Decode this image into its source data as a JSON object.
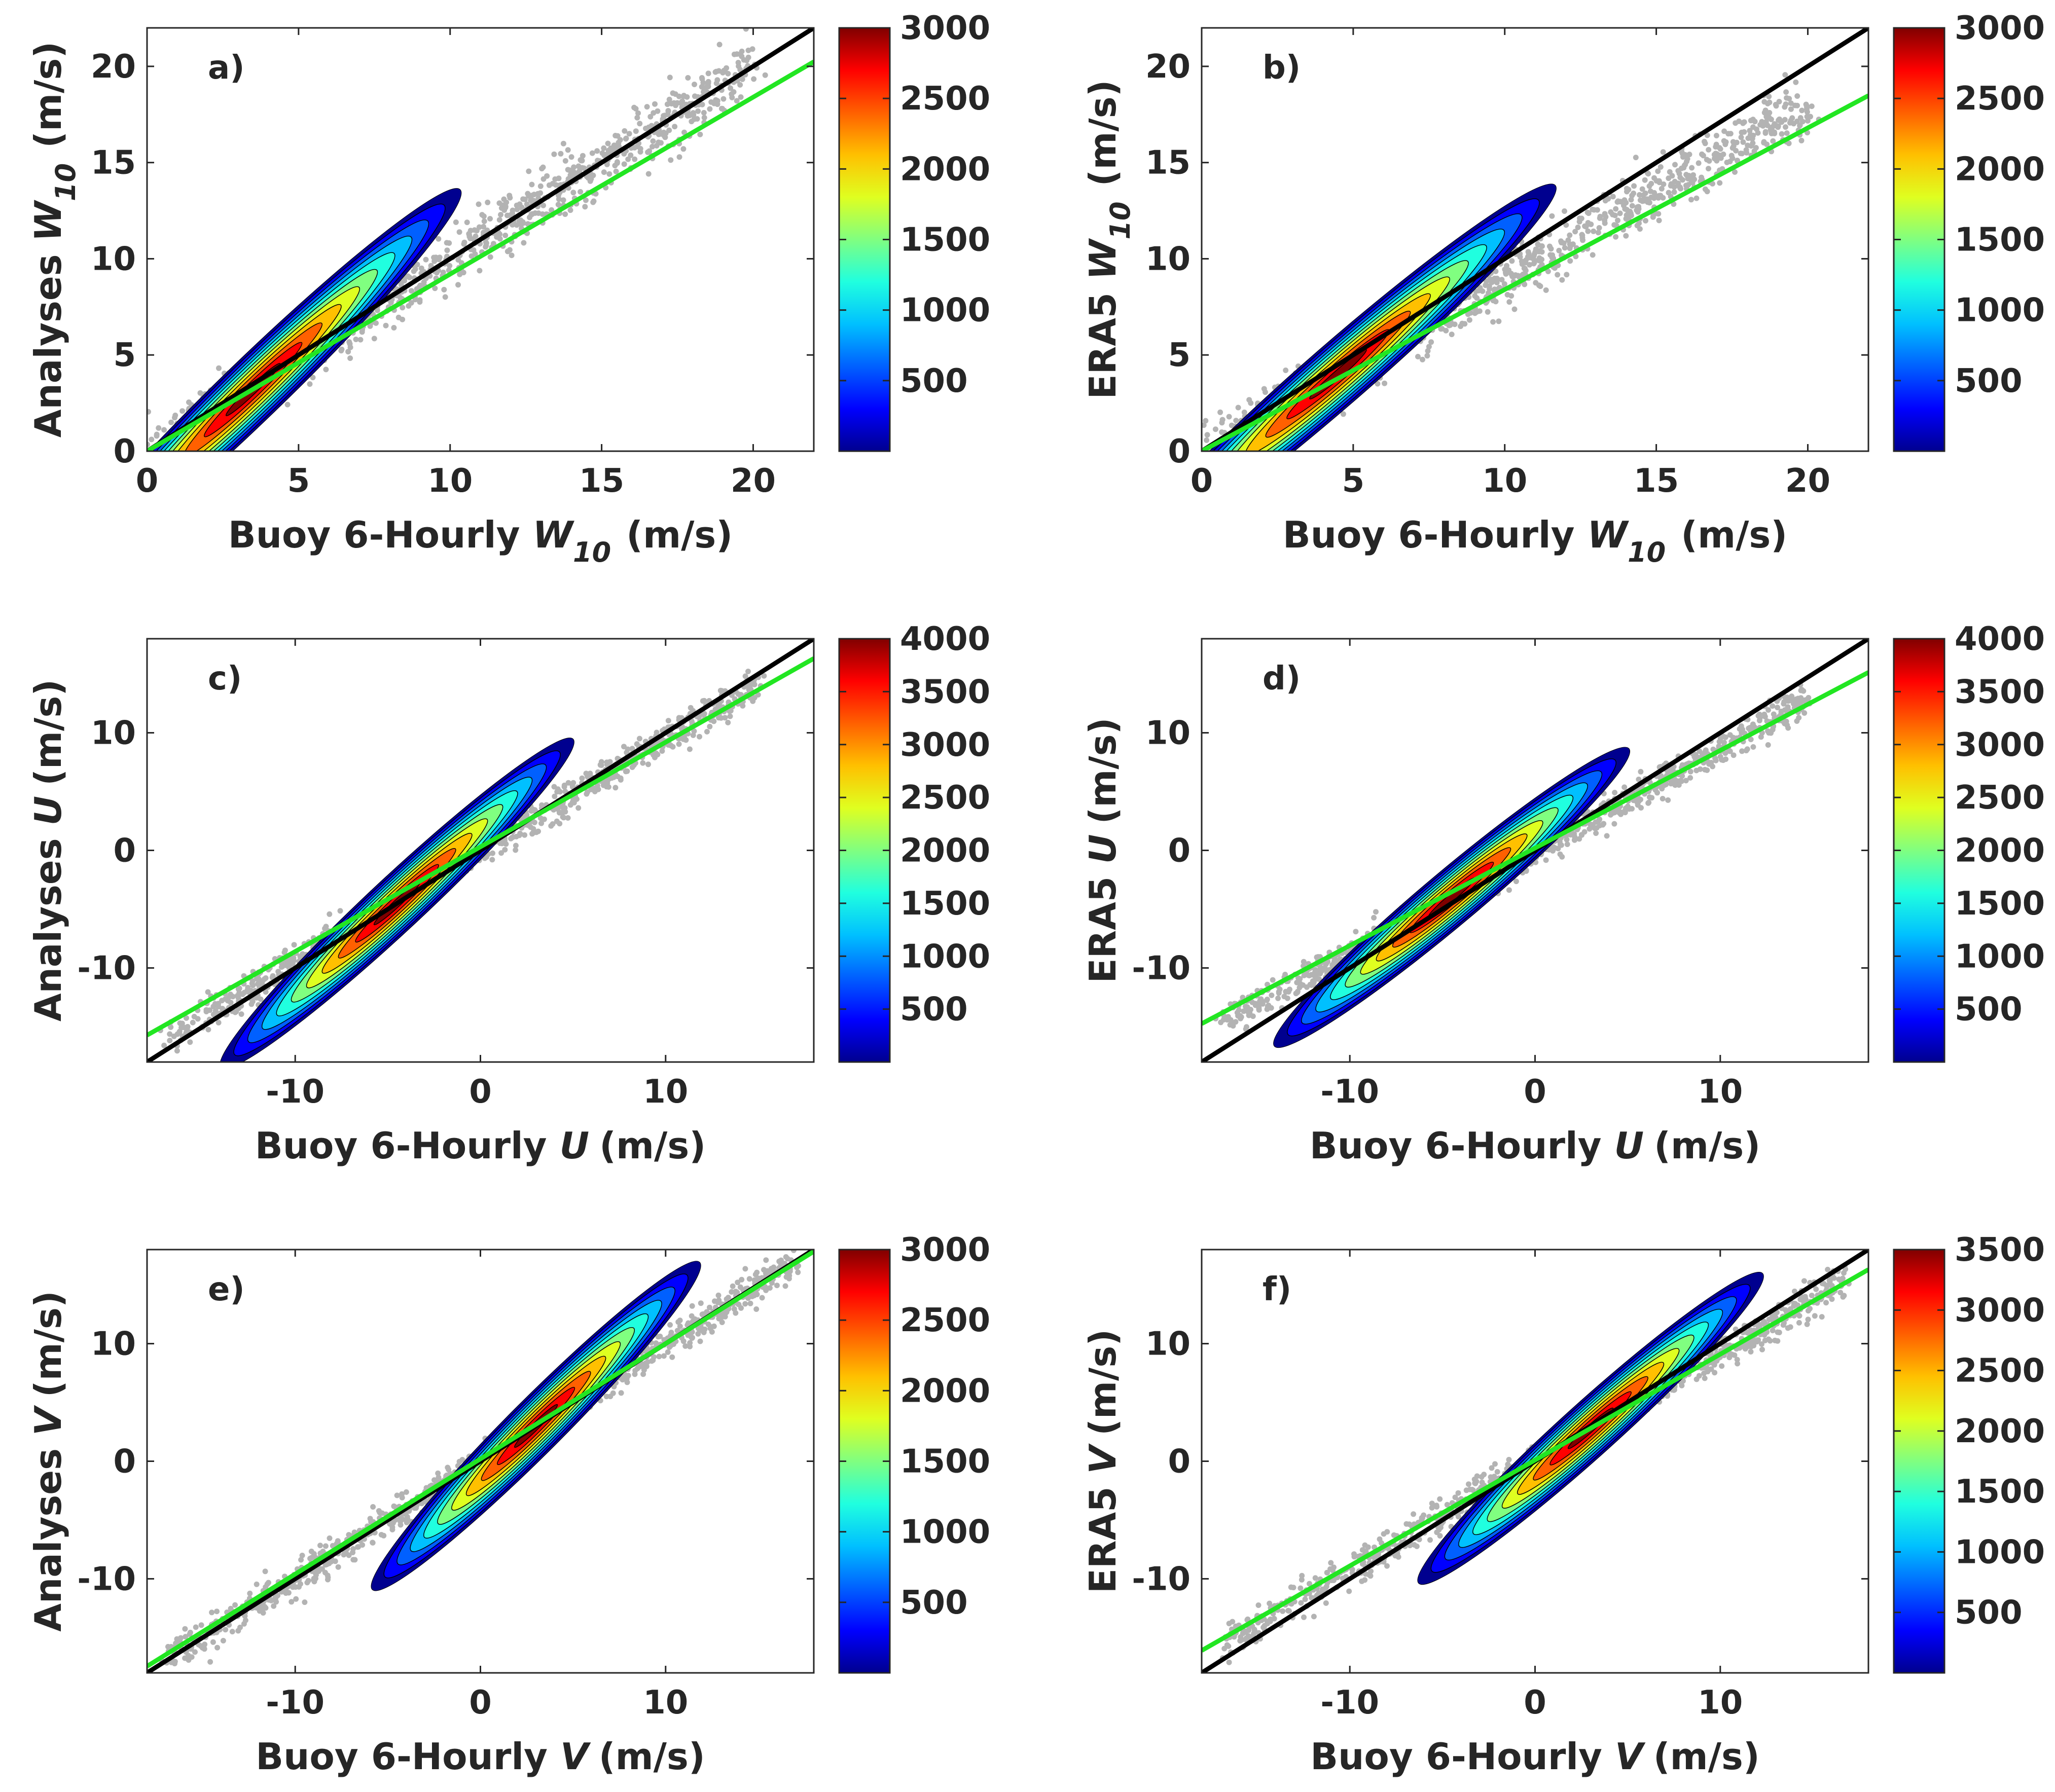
{
  "figure": {
    "description_none": ""
  },
  "colormap": [
    "#00008f",
    "#0000ff",
    "#0060ff",
    "#00c0ff",
    "#20ffdf",
    "#80ff80",
    "#dfff20",
    "#ffc000",
    "#ff6000",
    "#ff0000",
    "#800000"
  ],
  "colors": {
    "black_line": "#000000",
    "fit_line": "#22e622",
    "scatter": "#b3b3b3",
    "axis": "#262626"
  },
  "chart_data": [
    {
      "panel": "a)",
      "type": "scatter",
      "ylabel_main": "Analyses",
      "ylabel_var": "W",
      "ylabel_sub": "10",
      "ylabel_unit": "(m/s)",
      "xlabel_main": "Buoy 6-Hourly",
      "xlabel_var": "W",
      "xlabel_sub": "10",
      "xlabel_unit": "(m/s)",
      "xlim": [
        0,
        22
      ],
      "ylim": [
        0,
        22
      ],
      "xticks": [
        0,
        5,
        10,
        15,
        20
      ],
      "yticks": [
        0,
        5,
        10,
        15,
        20
      ],
      "xtick_labels": [
        "0",
        "5",
        "10",
        "15",
        "20"
      ],
      "ytick_labels": [
        "0",
        "5",
        "10",
        "15",
        "20"
      ],
      "fit": {
        "slope": 0.92,
        "intercept": 0.0
      },
      "one_to_one": true,
      "scatter": {
        "slope": 1.0,
        "intercept": 0.0,
        "spread": 2.0,
        "min": 0,
        "max": 20
      },
      "contour": {
        "min": 0,
        "max": 3000,
        "peak_x": 3.5,
        "peak_y": 3.2,
        "major": 9.5,
        "minor": 1.6,
        "angle_deg": 44
      },
      "colorbar": {
        "min": 0,
        "max": 3000,
        "ticks": [
          500,
          1000,
          1500,
          2000,
          2500,
          3000
        ],
        "tick_labels": [
          "500",
          "1000",
          "1500",
          "2000",
          "2500",
          "3000"
        ]
      }
    },
    {
      "panel": "b)",
      "type": "scatter",
      "ylabel_main": "ERA5",
      "ylabel_var": "W",
      "ylabel_sub": "10",
      "ylabel_unit": "(m/s)",
      "xlabel_main": "Buoy 6-Hourly",
      "xlabel_var": "W",
      "xlabel_sub": "10",
      "xlabel_unit": "(m/s)",
      "xlim": [
        0,
        22
      ],
      "ylim": [
        0,
        22
      ],
      "xticks": [
        0,
        5,
        10,
        15,
        20
      ],
      "yticks": [
        0,
        5,
        10,
        15,
        20
      ],
      "xtick_labels": [
        "0",
        "5",
        "10",
        "15",
        "20"
      ],
      "ytick_labels": [
        "0",
        "5",
        "10",
        "15",
        "20"
      ],
      "fit": {
        "slope": 0.84,
        "intercept": 0.0
      },
      "one_to_one": true,
      "scatter": {
        "slope": 0.9,
        "intercept": 0.0,
        "spread": 2.0,
        "min": 0,
        "max": 20
      },
      "contour": {
        "min": 0,
        "max": 3000,
        "peak_x": 4.5,
        "peak_y": 4.0,
        "major": 9.5,
        "minor": 1.6,
        "angle_deg": 41
      },
      "colorbar": {
        "min": 0,
        "max": 3000,
        "ticks": [
          500,
          1000,
          1500,
          2000,
          2500,
          3000
        ],
        "tick_labels": [
          "500",
          "1000",
          "1500",
          "2000",
          "2500",
          "3000"
        ]
      }
    },
    {
      "panel": "c)",
      "type": "scatter",
      "ylabel_main": "Analyses",
      "ylabel_var": "U",
      "ylabel_sub": "",
      "ylabel_unit": "(m/s)",
      "xlabel_main": "Buoy 6-Hourly",
      "xlabel_var": "U",
      "xlabel_sub": "",
      "xlabel_unit": "(m/s)",
      "xlim": [
        -18,
        18
      ],
      "ylim": [
        -18,
        18
      ],
      "xticks": [
        -10,
        0,
        10
      ],
      "yticks": [
        -10,
        0,
        10
      ],
      "xtick_labels": [
        "-10",
        "0",
        "10"
      ],
      "ytick_labels": [
        "-10",
        "0",
        "10"
      ],
      "fit": {
        "slope": 0.89,
        "intercept": 0.3
      },
      "one_to_one": true,
      "scatter": {
        "slope": 0.95,
        "intercept": 0.0,
        "spread": 1.8,
        "min": -17,
        "max": 15
      },
      "contour": {
        "min": 0,
        "max": 4000,
        "peak_x": -4.5,
        "peak_y": -4.5,
        "major": 13,
        "minor": 2.3,
        "angle_deg": 43
      },
      "colorbar": {
        "min": 0,
        "max": 4000,
        "ticks": [
          500,
          1000,
          1500,
          2000,
          2500,
          3000,
          3500,
          4000
        ],
        "tick_labels": [
          "500",
          "1000",
          "1500",
          "2000",
          "2500",
          "3000",
          "3500",
          "4000"
        ]
      }
    },
    {
      "panel": "d)",
      "type": "scatter",
      "ylabel_main": "ERA5",
      "ylabel_var": "U",
      "ylabel_sub": "",
      "ylabel_unit": "(m/s)",
      "xlabel_main": "Buoy 6-Hourly",
      "xlabel_var": "U",
      "xlabel_sub": "",
      "xlabel_unit": "(m/s)",
      "xlim": [
        -18,
        18
      ],
      "ylim": [
        -18,
        18
      ],
      "xticks": [
        -10,
        0,
        10
      ],
      "yticks": [
        -10,
        0,
        10
      ],
      "xtick_labels": [
        "-10",
        "0",
        "10"
      ],
      "ytick_labels": [
        "-10",
        "0",
        "10"
      ],
      "fit": {
        "slope": 0.83,
        "intercept": 0.2
      },
      "one_to_one": true,
      "scatter": {
        "slope": 0.87,
        "intercept": 0.0,
        "spread": 1.8,
        "min": -17,
        "max": 15
      },
      "contour": {
        "min": 0,
        "max": 4000,
        "peak_x": -4.5,
        "peak_y": -4.0,
        "major": 12.5,
        "minor": 2.3,
        "angle_deg": 40
      },
      "colorbar": {
        "min": 0,
        "max": 4000,
        "ticks": [
          500,
          1000,
          1500,
          2000,
          2500,
          3000,
          3500,
          4000
        ],
        "tick_labels": [
          "500",
          "1000",
          "1500",
          "2000",
          "2500",
          "3000",
          "3500",
          "4000"
        ]
      }
    },
    {
      "panel": "e)",
      "type": "scatter",
      "ylabel_main": "Analyses",
      "ylabel_var": "V",
      "ylabel_sub": "",
      "ylabel_unit": "(m/s)",
      "xlabel_main": "Buoy 6-Hourly",
      "xlabel_var": "V",
      "xlabel_sub": "",
      "xlabel_unit": "(m/s)",
      "xlim": [
        -18,
        18
      ],
      "ylim": [
        -18,
        18
      ],
      "xticks": [
        -10,
        0,
        10
      ],
      "yticks": [
        -10,
        0,
        10
      ],
      "xtick_labels": [
        "-10",
        "0",
        "10"
      ],
      "ytick_labels": [
        "-10",
        "0",
        "10"
      ],
      "fit": {
        "slope": 0.98,
        "intercept": 0.2
      },
      "one_to_one": true,
      "scatter": {
        "slope": 1.0,
        "intercept": 0.0,
        "spread": 1.8,
        "min": -17,
        "max": 17
      },
      "contour": {
        "min": 0,
        "max": 3000,
        "peak_x": 3.0,
        "peak_y": 3.0,
        "major": 12.5,
        "minor": 2.3,
        "angle_deg": 45
      },
      "colorbar": {
        "min": 0,
        "max": 3000,
        "ticks": [
          500,
          1000,
          1500,
          2000,
          2500,
          3000
        ],
        "tick_labels": [
          "500",
          "1000",
          "1500",
          "2000",
          "2500",
          "3000"
        ]
      }
    },
    {
      "panel": "f)",
      "type": "scatter",
      "ylabel_main": "ERA5",
      "ylabel_var": "V",
      "ylabel_sub": "",
      "ylabel_unit": "(m/s)",
      "xlabel_main": "Buoy 6-Hourly",
      "xlabel_var": "V",
      "xlabel_sub": "",
      "xlabel_unit": "(m/s)",
      "xlim": [
        -18,
        18
      ],
      "ylim": [
        -18,
        18
      ],
      "xticks": [
        -10,
        0,
        10
      ],
      "yticks": [
        -10,
        0,
        10
      ],
      "xtick_labels": [
        "-10",
        "0",
        "10"
      ],
      "ytick_labels": [
        "-10",
        "0",
        "10"
      ],
      "fit": {
        "slope": 0.9,
        "intercept": 0.1
      },
      "one_to_one": true,
      "scatter": {
        "slope": 0.92,
        "intercept": 0.0,
        "spread": 1.8,
        "min": -17,
        "max": 17
      },
      "contour": {
        "min": 0,
        "max": 3500,
        "peak_x": 3.0,
        "peak_y": 2.8,
        "major": 12.5,
        "minor": 2.3,
        "angle_deg": 42
      },
      "colorbar": {
        "min": 0,
        "max": 3500,
        "ticks": [
          500,
          1000,
          1500,
          2000,
          2500,
          3000,
          3500
        ],
        "tick_labels": [
          "500",
          "1000",
          "1500",
          "2000",
          "2500",
          "3000",
          "3500"
        ]
      }
    }
  ]
}
